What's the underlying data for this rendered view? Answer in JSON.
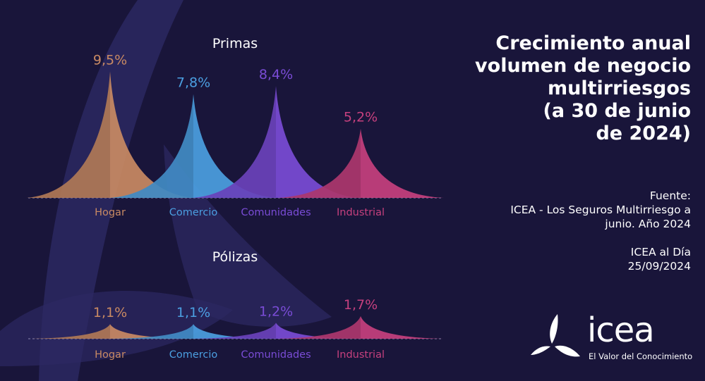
{
  "title_lines": [
    "Crecimiento anual",
    "volumen de negocio",
    "multirriesgos",
    "(a 30 de junio",
    "de 2024)"
  ],
  "source": {
    "label": "Fuente:",
    "line1": "ICEA - Los Seguros Multirriesgo a",
    "line2": "junio. Año 2024",
    "pub1": "ICEA al Día",
    "pub2": "25/09/2024"
  },
  "logo": {
    "word": "icea",
    "tagline": "El Valor del Conocimiento"
  },
  "colors": {
    "Hogar": "#c98a63",
    "Comercio": "#4b9fe1",
    "Comunidades": "#7a4cd6",
    "Industrial": "#c6407e",
    "background": "#19153a"
  },
  "chart_data": [
    {
      "type": "area",
      "title": "Primas",
      "categories": [
        "Hogar",
        "Comercio",
        "Comunidades",
        "Industrial"
      ],
      "values": [
        9.5,
        7.8,
        8.4,
        5.2
      ],
      "value_labels": [
        "9,5%",
        "7,8%",
        "8,4%",
        "5,2%"
      ],
      "unit": "%"
    },
    {
      "type": "area",
      "title": "Pólizas",
      "categories": [
        "Hogar",
        "Comercio",
        "Comunidades",
        "Industrial"
      ],
      "values": [
        1.1,
        1.1,
        1.2,
        1.7
      ],
      "value_labels": [
        "1,1%",
        "1,1%",
        "1,2%",
        "1,7%"
      ],
      "unit": "%"
    }
  ]
}
